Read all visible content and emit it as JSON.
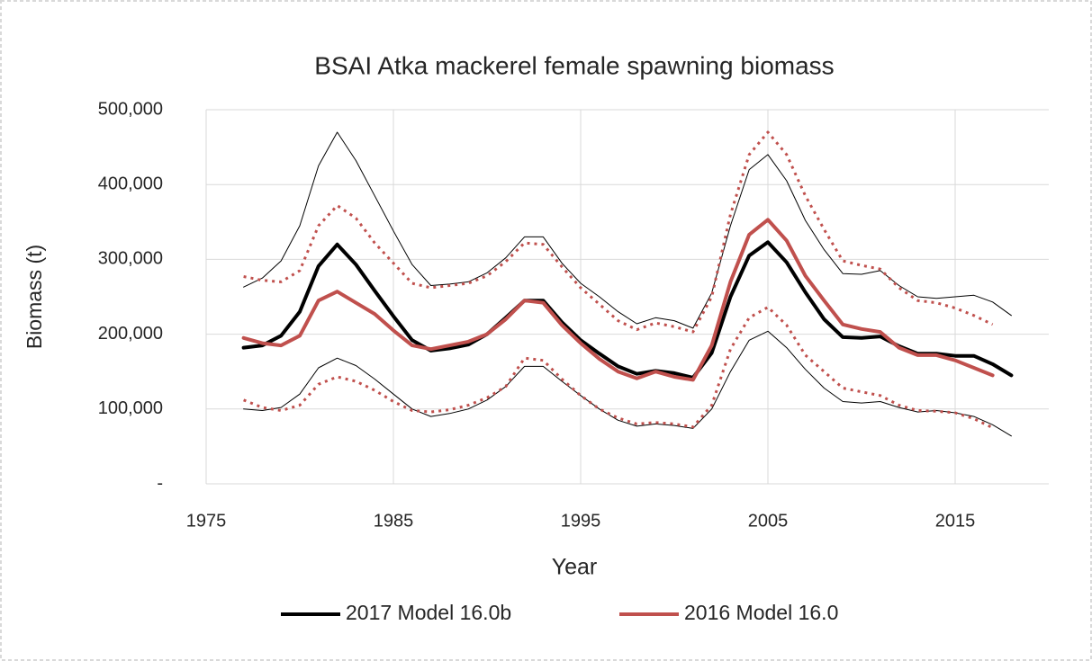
{
  "chart_data": {
    "type": "line",
    "title": "BSAI Atka mackerel female spawning biomass",
    "x_label": "Year",
    "y_label": "Biomass (t)",
    "x": [
      1977,
      1978,
      1979,
      1980,
      1981,
      1982,
      1983,
      1984,
      1985,
      1986,
      1987,
      1988,
      1989,
      1990,
      1991,
      1992,
      1993,
      1994,
      1995,
      1996,
      1997,
      1998,
      1999,
      2000,
      2001,
      2002,
      2003,
      2004,
      2005,
      2006,
      2007,
      2008,
      2009,
      2010,
      2011,
      2012,
      2013,
      2014,
      2015,
      2016,
      2017,
      2018
    ],
    "xlim": [
      1975,
      2020
    ],
    "xticks": [
      1975,
      1985,
      1995,
      2005,
      2015
    ],
    "ylim": [
      0,
      500000
    ],
    "yticks": [
      {
        "value": 0,
        "label": "-"
      },
      {
        "value": 100000,
        "label": "100,000"
      },
      {
        "value": 200000,
        "label": "200,000"
      },
      {
        "value": 300000,
        "label": "300,000"
      },
      {
        "value": 400000,
        "label": "400,000"
      },
      {
        "value": 500000,
        "label": "500,000"
      }
    ],
    "grid": true,
    "legend": "bottom",
    "series": [
      {
        "color": "#000000",
        "width": 1,
        "dash": "solid",
        "values": [
          263000,
          275000,
          298000,
          345000,
          425000,
          470000,
          432000,
          385000,
          338000,
          293000,
          265000,
          267000,
          270000,
          282000,
          302000,
          330000,
          330000,
          295000,
          268000,
          250000,
          230000,
          214000,
          222000,
          218000,
          208000,
          255000,
          345000,
          420000,
          440000,
          405000,
          352000,
          313000,
          281000,
          280000,
          285000,
          265000,
          250000,
          248000,
          250000,
          252000,
          243000,
          225000
        ]
      },
      {
        "color": "#000000",
        "width": 1,
        "dash": "solid",
        "values": [
          100000,
          98000,
          102000,
          120000,
          155000,
          168000,
          158000,
          140000,
          120000,
          100000,
          90000,
          94000,
          100000,
          112000,
          130000,
          157000,
          157000,
          137000,
          118000,
          100000,
          85000,
          77000,
          80000,
          78000,
          74000,
          100000,
          150000,
          192000,
          204000,
          182000,
          153000,
          128000,
          110000,
          108000,
          110000,
          102000,
          96000,
          98000,
          95000,
          90000,
          79000,
          64000
        ]
      },
      {
        "color": "#c0504d",
        "width": 3,
        "dash": "dotted",
        "values": [
          277000,
          272000,
          270000,
          285000,
          345000,
          372000,
          355000,
          322000,
          295000,
          268000,
          262000,
          265000,
          268000,
          278000,
          297000,
          322000,
          320000,
          290000,
          262000,
          240000,
          218000,
          206000,
          215000,
          210000,
          203000,
          250000,
          360000,
          440000,
          470000,
          440000,
          385000,
          340000,
          298000,
          292000,
          287000,
          262000,
          245000,
          242000,
          235000,
          225000,
          213000,
          null
        ]
      },
      {
        "color": "#c0504d",
        "width": 3,
        "dash": "dotted",
        "values": [
          112000,
          102000,
          98000,
          105000,
          133000,
          143000,
          137000,
          125000,
          110000,
          98000,
          96000,
          99000,
          105000,
          115000,
          130000,
          168000,
          165000,
          140000,
          118000,
          100000,
          88000,
          80000,
          82000,
          80000,
          76000,
          105000,
          180000,
          222000,
          236000,
          212000,
          172000,
          150000,
          128000,
          123000,
          118000,
          105000,
          98000,
          97000,
          95000,
          87000,
          75000,
          null
        ]
      },
      {
        "name": "2017 Model 16.0b",
        "color": "#000000",
        "width": 4,
        "dash": "solid",
        "values": [
          182000,
          185000,
          198000,
          230000,
          291000,
          320000,
          293000,
          258000,
          224000,
          192000,
          178000,
          181000,
          186000,
          200000,
          222000,
          245000,
          245000,
          216000,
          192000,
          174000,
          157000,
          147000,
          151000,
          148000,
          142000,
          175000,
          250000,
          305000,
          323000,
          296000,
          256000,
          220000,
          196000,
          195000,
          197000,
          184000,
          174000,
          174000,
          171000,
          171000,
          160000,
          145000
        ]
      },
      {
        "name": "2016 Model 16.0",
        "color": "#c0504d",
        "width": 4,
        "dash": "solid",
        "values": [
          195000,
          188000,
          185000,
          198000,
          245000,
          257000,
          242000,
          227000,
          205000,
          185000,
          180000,
          185000,
          190000,
          200000,
          220000,
          245000,
          242000,
          212000,
          188000,
          167000,
          150000,
          141000,
          150000,
          143000,
          139000,
          185000,
          270000,
          333000,
          353000,
          325000,
          278000,
          245000,
          213000,
          207000,
          203000,
          182000,
          172000,
          172000,
          165000,
          155000,
          145000,
          null
        ]
      }
    ]
  }
}
